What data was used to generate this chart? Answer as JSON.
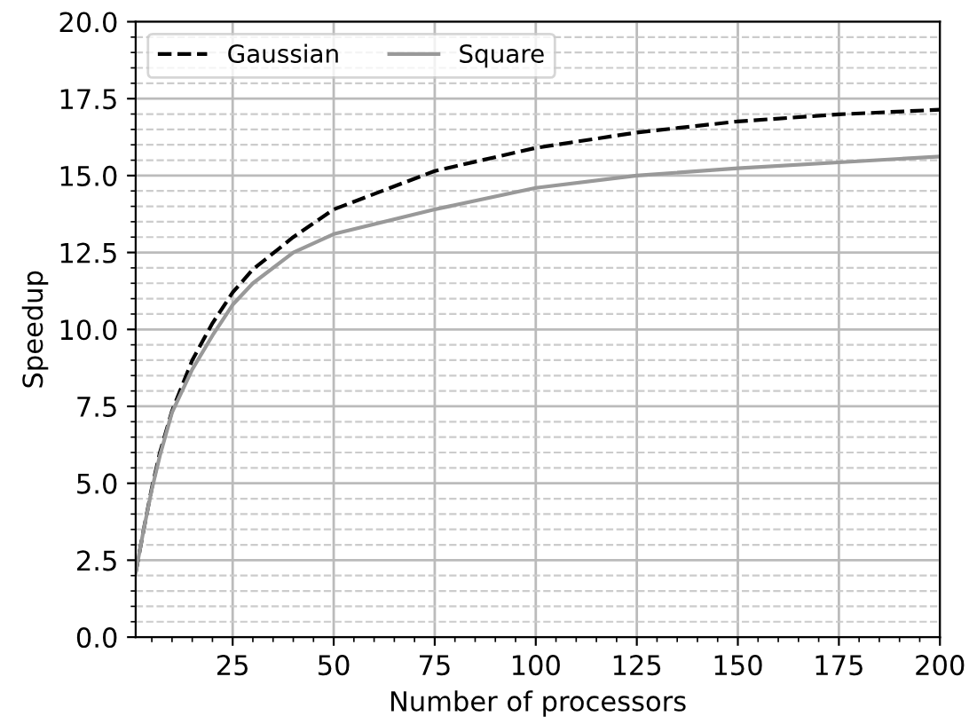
{
  "chart_data": {
    "type": "line",
    "xlabel": "Number of processors",
    "ylabel": "Speedup",
    "xlim": [
      1,
      200
    ],
    "ylim": [
      0,
      20
    ],
    "xticks": [
      25,
      50,
      75,
      100,
      125,
      150,
      175,
      200
    ],
    "yticks": [
      {
        "value": 0,
        "label": "0.0"
      },
      {
        "value": 2.5,
        "label": "2.5"
      },
      {
        "value": 5,
        "label": "5.0"
      },
      {
        "value": 7.5,
        "label": "7.5"
      },
      {
        "value": 10,
        "label": "10.0"
      },
      {
        "value": 12.5,
        "label": "12.5"
      },
      {
        "value": 15,
        "label": "15.0"
      },
      {
        "value": 17.5,
        "label": "17.5"
      },
      {
        "value": 20,
        "label": "20.0"
      }
    ],
    "grid": true,
    "legend": "top left",
    "marker": "none",
    "series": [
      {
        "name": "Gaussian",
        "color": "#000000",
        "line_style": "dashed",
        "x": [
          1,
          2,
          3,
          5,
          7,
          10,
          15,
          20,
          25,
          30,
          40,
          50,
          75,
          100,
          125,
          150,
          175,
          200
        ],
        "values": [
          2.1,
          2.8,
          3.5,
          4.85,
          6.0,
          7.35,
          9.0,
          10.2,
          11.2,
          11.95,
          13.0,
          13.9,
          15.15,
          15.9,
          16.4,
          16.76,
          16.99,
          17.14
        ]
      },
      {
        "name": "Square",
        "color": "#999999",
        "line_style": "solid",
        "x": [
          1,
          2,
          3,
          5,
          7,
          10,
          15,
          20,
          25,
          30,
          40,
          50,
          75,
          100,
          125,
          150,
          175,
          200
        ],
        "values": [
          2.1,
          2.8,
          3.5,
          4.8,
          5.9,
          7.3,
          8.7,
          9.8,
          10.8,
          11.5,
          12.5,
          13.1,
          13.9,
          14.6,
          15.0,
          15.24,
          15.43,
          15.62
        ]
      }
    ]
  }
}
